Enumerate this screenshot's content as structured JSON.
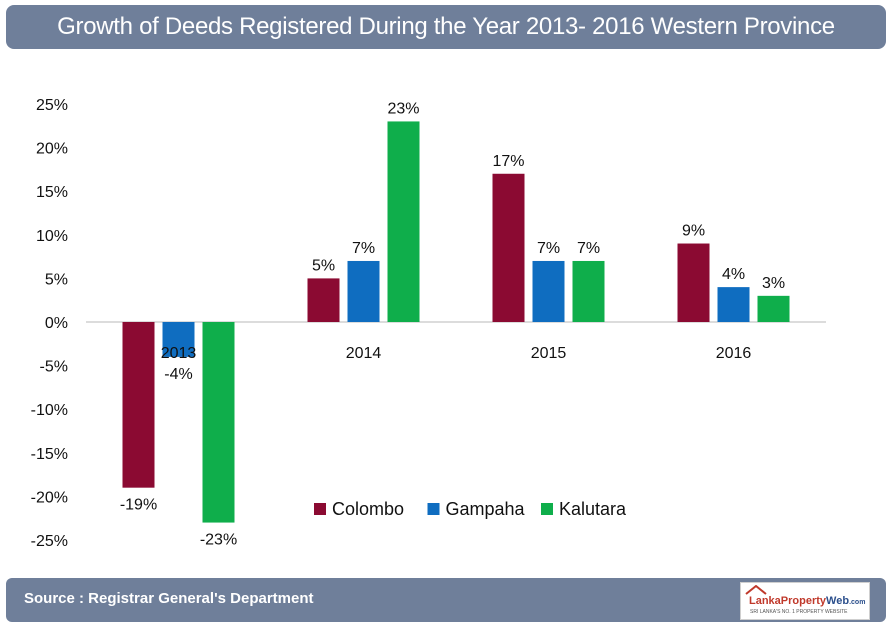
{
  "header": {
    "title": "Growth of Deeds Registered During the Year 2013- 2016  Western Province"
  },
  "footer": {
    "source": "Source : Registrar General's Department",
    "logo": {
      "part1": "Lanka",
      "part2": "Property",
      "part3": "Web",
      "suffix": ".com",
      "tagline": "SRI LANKA'S NO. 1 PROPERTY WEBSITE"
    }
  },
  "colors": {
    "Colombo": "#8b0a32",
    "Gampaha": "#0f6dc0",
    "Kalutara": "#0fae4b",
    "header_bg": "#6f7f9a"
  },
  "chart_data": {
    "type": "bar",
    "title": "",
    "xlabel": "",
    "ylabel": "",
    "categories": [
      "2013",
      "2014",
      "2015",
      "2016"
    ],
    "series": [
      {
        "name": "Colombo",
        "values": [
          -19,
          5,
          17,
          9
        ],
        "labels": [
          "-19%",
          "5%",
          "17%",
          "9%"
        ]
      },
      {
        "name": "Gampaha",
        "values": [
          -4,
          7,
          7,
          4
        ],
        "labels": [
          "-4%",
          "7%",
          "7%",
          "4%"
        ]
      },
      {
        "name": "Kalutara",
        "values": [
          -23,
          23,
          7,
          3
        ],
        "labels": [
          "-23%",
          "23%",
          "7%",
          "3%"
        ]
      }
    ],
    "ylim": [
      -25,
      25
    ],
    "yticks": [
      25,
      20,
      15,
      10,
      5,
      0,
      -5,
      -10,
      -15,
      -20,
      -25
    ],
    "ytick_labels": [
      "25%",
      "20%",
      "15%",
      "10%",
      "5%",
      "0%",
      "-5%",
      "-10%",
      "-15%",
      "-20%",
      "-25%"
    ],
    "grid": false,
    "legend": "bottom-right"
  }
}
